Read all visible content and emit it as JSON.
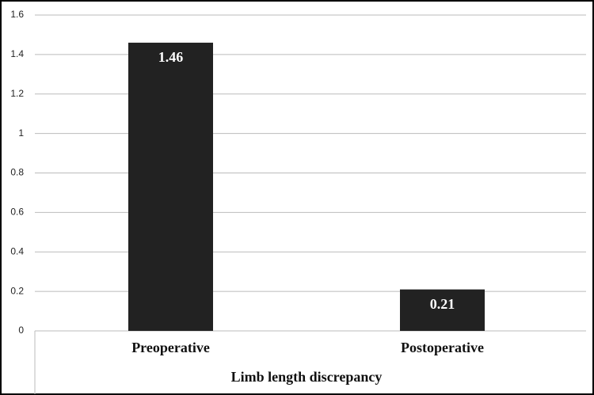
{
  "chart_data": {
    "type": "bar",
    "x_label": "Limb length discrepancy",
    "categories": [
      "Preoperative",
      "Postoperative"
    ],
    "values": [
      1.46,
      0.21
    ],
    "color": "#222222",
    "ylim": [
      0,
      1.6
    ],
    "yticks": [
      0,
      0.2,
      0.4,
      0.6,
      0.8,
      1,
      1.2,
      1.4,
      1.6
    ],
    "grid": true
  }
}
